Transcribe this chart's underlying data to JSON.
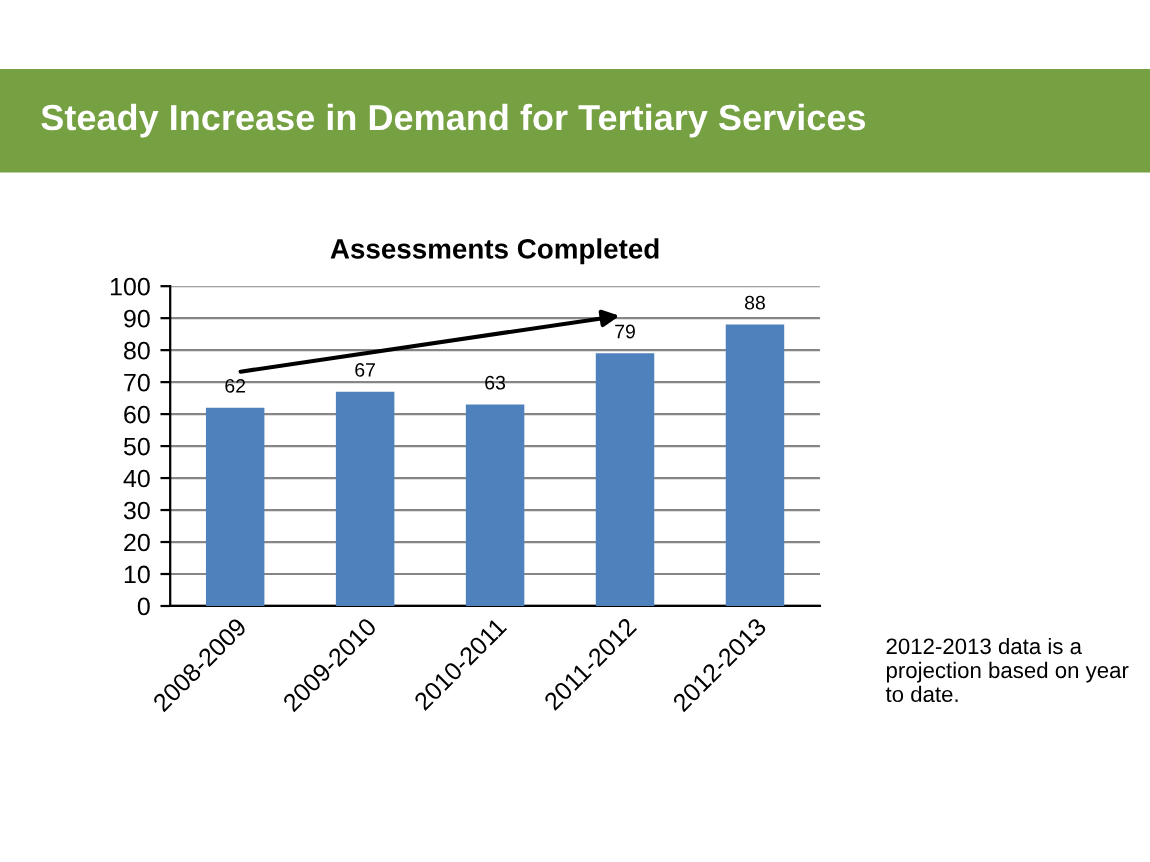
{
  "chart_data": {
    "type": "bar",
    "title": "Assessments Completed",
    "subtitle": "Steady Increase in Demand for Tertiary Services",
    "categories": [
      "2008-2009",
      "2009-2010",
      "2010-2011",
      "2011-2012",
      "2012-2013"
    ],
    "values": [
      62,
      67,
      63,
      79,
      88
    ],
    "color": "#4f81bd",
    "ylim": [
      0,
      100
    ],
    "yticks": [
      0,
      10,
      20,
      30,
      40,
      50,
      60,
      70,
      80,
      90,
      100
    ],
    "grid": "y",
    "data_labels": true,
    "annotations": [
      "2012-2013 data is a projection based on year to date."
    ]
  }
}
